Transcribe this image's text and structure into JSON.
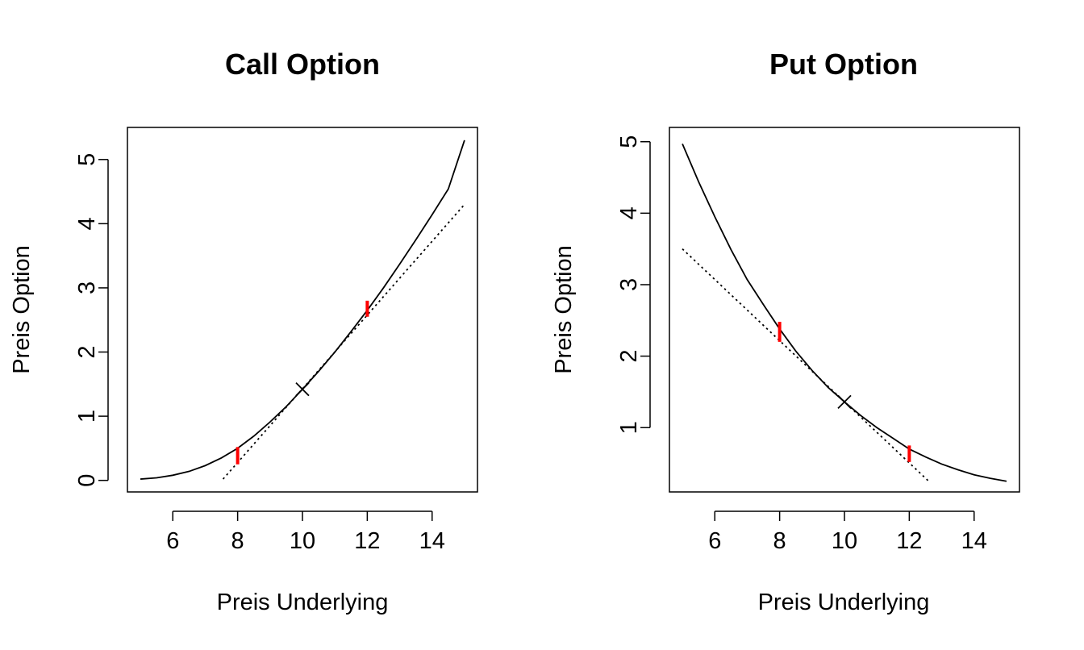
{
  "chart_data": [
    {
      "type": "line",
      "title": "Call Option",
      "xlabel": "Preis Underlying",
      "ylabel": "Preis Option",
      "xlim": [
        4.6,
        15.4
      ],
      "ylim": [
        -0.18,
        5.5
      ],
      "xticks": [
        6,
        8,
        10,
        12,
        14
      ],
      "yticks": [
        0,
        1,
        2,
        3,
        4,
        5
      ],
      "grid": false,
      "legend": "none",
      "series": [
        {
          "style": "solid",
          "color": "#000000",
          "x": [
            5,
            5.5,
            6,
            6.5,
            7,
            7.5,
            8,
            8.5,
            9,
            9.5,
            10,
            10.5,
            11,
            11.5,
            12,
            12.5,
            13,
            13.5,
            14,
            14.5,
            15
          ],
          "y": [
            0.02,
            0.04,
            0.08,
            0.14,
            0.23,
            0.35,
            0.5,
            0.69,
            0.91,
            1.15,
            1.42,
            1.7,
            2.0,
            2.32,
            2.65,
            3.0,
            3.37,
            3.75,
            4.14,
            4.54,
            5.3
          ]
        },
        {
          "style": "dotted",
          "color": "#000000",
          "x": [
            7.55,
            15
          ],
          "y": [
            0.02,
            4.3
          ]
        }
      ],
      "markers": [
        {
          "shape": "cross",
          "color": "#000000",
          "x": 10,
          "y": 1.42
        }
      ],
      "intervals": [
        {
          "color": "#ff0000",
          "x": 8,
          "y_low": 0.25,
          "y_high": 0.52
        },
        {
          "color": "#ff0000",
          "x": 12,
          "y_low": 2.55,
          "y_high": 2.8
        }
      ]
    },
    {
      "type": "line",
      "title": "Put Option",
      "xlabel": "Preis Underlying",
      "ylabel": "Preis Option",
      "xlim": [
        4.6,
        15.4
      ],
      "ylim": [
        0.1,
        5.2
      ],
      "xticks": [
        6,
        8,
        10,
        12,
        14
      ],
      "yticks": [
        1,
        2,
        3,
        4,
        5
      ],
      "grid": false,
      "legend": "none",
      "series": [
        {
          "style": "solid",
          "color": "#000000",
          "x": [
            5,
            5.5,
            6,
            6.5,
            7,
            7.5,
            8,
            8.5,
            9,
            9.5,
            10,
            10.5,
            11,
            11.5,
            12,
            12.5,
            13,
            13.5,
            14,
            14.5,
            15
          ],
          "y": [
            4.97,
            4.44,
            3.95,
            3.49,
            3.07,
            2.72,
            2.38,
            2.07,
            1.8,
            1.56,
            1.36,
            1.17,
            1.0,
            0.85,
            0.7,
            0.59,
            0.49,
            0.41,
            0.34,
            0.29,
            0.25
          ]
        },
        {
          "style": "dotted",
          "color": "#000000",
          "x": [
            5,
            12.6
          ],
          "y": [
            3.5,
            0.25
          ]
        }
      ],
      "markers": [
        {
          "shape": "cross",
          "color": "#000000",
          "x": 10,
          "y": 1.36
        }
      ],
      "intervals": [
        {
          "color": "#ff0000",
          "x": 8,
          "y_low": 2.2,
          "y_high": 2.48
        },
        {
          "color": "#ff0000",
          "x": 12,
          "y_low": 0.52,
          "y_high": 0.75
        }
      ]
    }
  ]
}
